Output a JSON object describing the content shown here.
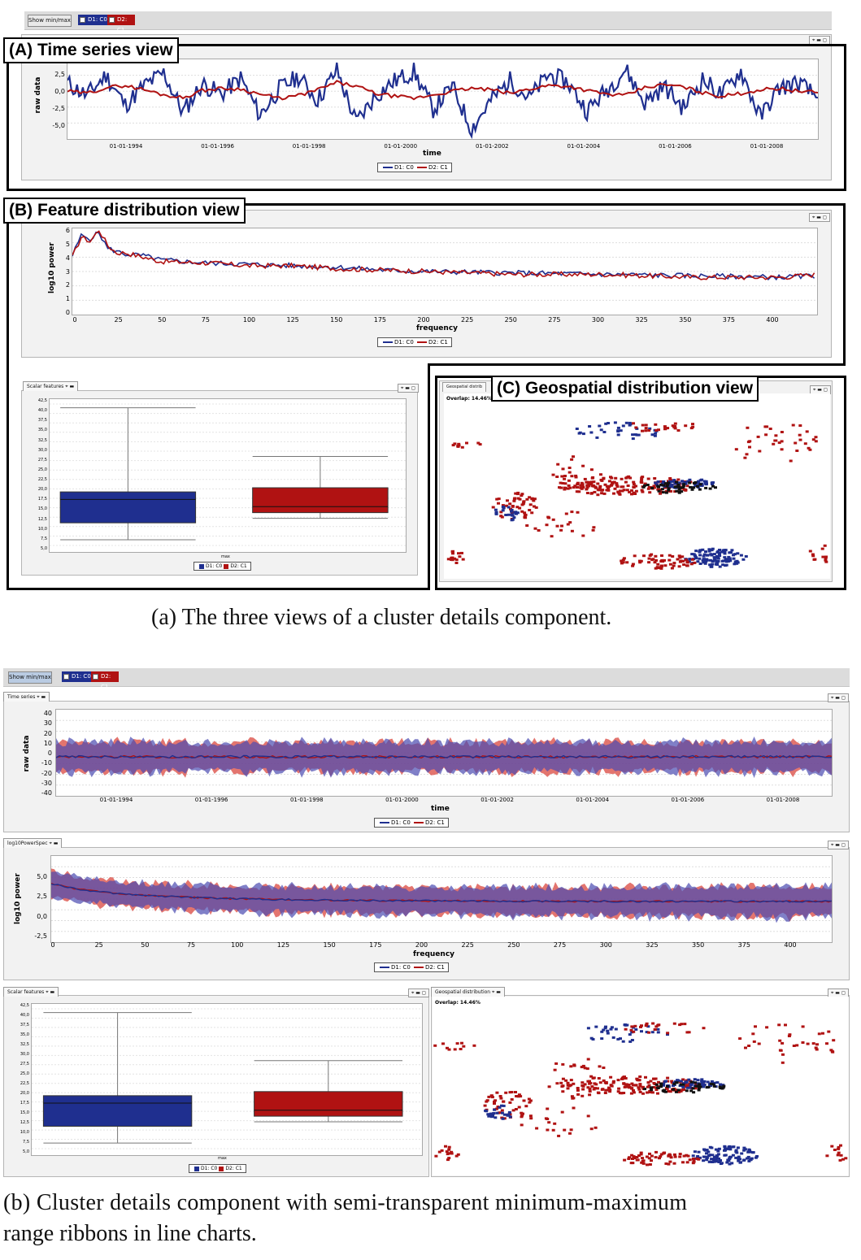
{
  "top": {
    "show_minmax": "Show min/max",
    "toggle_d1": "D1: C0",
    "toggle_d2": "D2: C1",
    "color_d1": "#1f2f8f",
    "color_d2": "#b01212"
  },
  "part_a": {
    "label_time_series": "(A) Time series view",
    "label_feature_dist": "(B) Feature distribution view",
    "label_geo": "(C) Geospatial distribution view",
    "ts": {
      "ylabel": "raw data",
      "xlabel": "time",
      "yticks": [
        "2,5",
        "0,0",
        "-2,5",
        "-5,0"
      ],
      "xticks": [
        "01-01-1994",
        "01-01-1996",
        "01-01-1998",
        "01-01-2000",
        "01-01-2002",
        "01-01-2004",
        "01-01-2006",
        "01-01-2008"
      ],
      "legend_d1": "D1: C0",
      "legend_d2": "D2: C1"
    },
    "fd": {
      "ylabel": "log10 power",
      "xlabel": "frequency",
      "yticks": [
        "6",
        "5",
        "4",
        "3",
        "2",
        "1",
        "0"
      ],
      "xticks": [
        "0",
        "25",
        "50",
        "75",
        "100",
        "125",
        "150",
        "175",
        "200",
        "225",
        "250",
        "275",
        "300",
        "325",
        "350",
        "375",
        "400"
      ],
      "legend_d1": "D1: C0",
      "legend_d2": "D2: C1"
    },
    "scalar": {
      "tab": "Scalar features",
      "xlabel": "max",
      "yticks": [
        "42,5",
        "40,0",
        "37,5",
        "35,0",
        "32,5",
        "30,0",
        "27,5",
        "25,0",
        "22,5",
        "20,0",
        "17,5",
        "15,0",
        "12,5",
        "10,0",
        "7,5",
        "5,0"
      ],
      "legend_d1": "D1: C0",
      "legend_d2": "D2: C1"
    },
    "geo": {
      "tab": "Geospatial distrib",
      "overlap": "Overlap: 14.46%"
    },
    "caption": "(a)  The three views of a cluster details component."
  },
  "part_b": {
    "ts": {
      "tab": "Time series",
      "ylabel": "raw data",
      "xlabel": "time",
      "yticks": [
        "40",
        "30",
        "20",
        "10",
        "0",
        "-10",
        "-20",
        "-30",
        "-40"
      ],
      "xticks": [
        "01-01-1994",
        "01-01-1996",
        "01-01-1998",
        "01-01-2000",
        "01-01-2002",
        "01-01-2004",
        "01-01-2006",
        "01-01-2008"
      ],
      "legend_d1": "D1: C0",
      "legend_d2": "D2: C1"
    },
    "fd": {
      "tab": "log10PowerSpec",
      "ylabel": "log10 power",
      "xlabel": "frequency",
      "yticks": [
        "5,0",
        "2,5",
        "0,0",
        "-2,5"
      ],
      "xticks": [
        "0",
        "25",
        "50",
        "75",
        "100",
        "125",
        "150",
        "175",
        "200",
        "225",
        "250",
        "275",
        "300",
        "325",
        "350",
        "375",
        "400"
      ],
      "legend_d1": "D1: C0",
      "legend_d2": "D2: C1"
    },
    "scalar": {
      "tab": "Scalar features",
      "xlabel": "max",
      "yticks": [
        "42,5",
        "40,0",
        "37,5",
        "35,0",
        "32,5",
        "30,0",
        "27,5",
        "25,0",
        "22,5",
        "20,0",
        "17,5",
        "15,0",
        "12,5",
        "10,0",
        "7,5",
        "5,0"
      ],
      "legend_d1": "D1: C0",
      "legend_d2": "D2: C1"
    },
    "geo": {
      "tab": "Geospatial distribution",
      "overlap": "Overlap: 14.46%"
    },
    "caption_line1": "(b)  Cluster  details  component  with  semi-transparent  minimum-maximum",
    "caption_line2": "range ribbons in line charts."
  },
  "chart_data": [
    {
      "type": "line",
      "title": "",
      "xlabel": "time",
      "ylabel": "raw data",
      "ylim": [
        -6.5,
        4.5
      ],
      "series": [
        {
          "name": "D1: C0",
          "values": [
            1.2,
            -0.5,
            2.3,
            -1.8,
            0.9,
            2.6,
            -2.8,
            1.1,
            -0.3,
            1.9,
            -3.2,
            0.4,
            2.1,
            -1.1,
            3.0,
            -4.2,
            -0.6,
            1.5,
            2.8,
            -2.4,
            0.7,
            -5.1,
            -1.2,
            1.6,
            -0.9,
            2.4,
            1.3,
            -2.6,
            0.2,
            3.1,
            -1.5,
            0.8,
            -2.2,
            1.7,
            -0.4,
            2.9,
            -3.5,
            0.6,
            1.2,
            -0.8
          ]
        },
        {
          "name": "D2: C1",
          "values": [
            0.1,
            -0.2,
            0.6,
            0.9,
            0.3,
            -0.4,
            -0.8,
            0.2,
            0.5,
            0.4,
            -0.3,
            -0.9,
            -0.5,
            0.3,
            1.3,
            0.8,
            -0.2,
            -0.6,
            -0.9,
            -0.4,
            0.1,
            0.5,
            0.3,
            -0.2,
            0.4,
            0.9,
            0.8,
            0.2,
            -0.3,
            -0.5,
            0.6,
            1.0,
            0.7,
            -0.1,
            -0.6,
            -0.2,
            0.3,
            0.5,
            0.1,
            -0.1
          ]
        }
      ]
    },
    {
      "type": "line",
      "title": "",
      "xlabel": "frequency",
      "ylabel": "log10 power",
      "xlim": [
        0,
        420
      ],
      "ylim": [
        0,
        6
      ],
      "series": [
        {
          "name": "D1: C0",
          "x": [
            0,
            5,
            10,
            15,
            20,
            25,
            30,
            40,
            50,
            75,
            100,
            125,
            150,
            175,
            200,
            250,
            300,
            350,
            400,
            420
          ],
          "values": [
            4.1,
            5.5,
            5.3,
            5.7,
            4.6,
            4.4,
            4.2,
            4.1,
            3.8,
            3.6,
            3.5,
            3.4,
            3.3,
            3.1,
            3.0,
            2.9,
            2.8,
            2.7,
            2.6,
            2.7
          ]
        },
        {
          "name": "D2: C1",
          "x": [
            0,
            5,
            10,
            15,
            20,
            25,
            30,
            40,
            50,
            75,
            100,
            125,
            150,
            175,
            200,
            250,
            300,
            350,
            400,
            420
          ],
          "values": [
            4.0,
            5.4,
            5.1,
            5.9,
            4.8,
            4.3,
            4.3,
            4.0,
            3.7,
            3.6,
            3.4,
            3.4,
            3.2,
            3.1,
            3.0,
            2.8,
            2.8,
            2.6,
            2.6,
            2.8
          ]
        }
      ]
    },
    {
      "type": "box",
      "xlabel": "max",
      "ylim": [
        5.0,
        42.5
      ],
      "series": [
        {
          "name": "D1: C0",
          "min": 6.5,
          "q1": 11.0,
          "median": 17.2,
          "q3": 19.2,
          "max": 41.5
        },
        {
          "name": "D2: C1",
          "min": 12.2,
          "q1": 13.7,
          "median": 15.3,
          "q3": 20.3,
          "max": 28.6
        }
      ]
    }
  ]
}
